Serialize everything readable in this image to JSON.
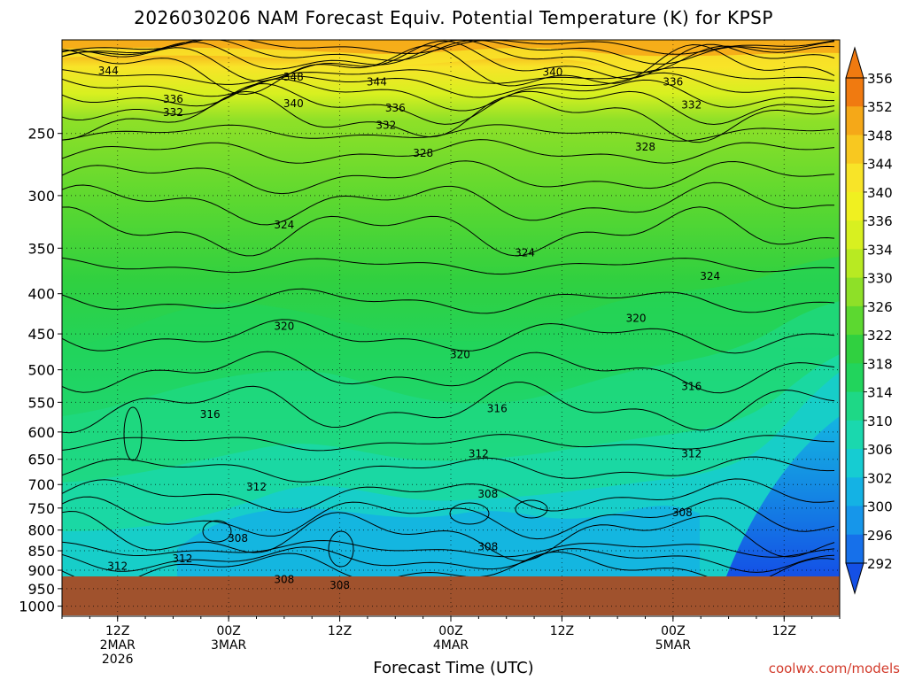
{
  "title": "2026030206 NAM Forecast Equiv. Potential Temperature (K) for KPSP",
  "credit": "coolwx.com/models",
  "chart_data": {
    "type": "heatmap",
    "title": "2026030206 NAM Forecast Equiv. Potential Temperature (K) for KPSP",
    "xlabel": "Forecast Time (UTC)",
    "ylabel": "",
    "x_ticks": [
      {
        "label": [
          "12Z",
          "2MAR",
          "2026"
        ],
        "hour": 6
      },
      {
        "label": [
          "00Z",
          "3MAR"
        ],
        "hour": 18
      },
      {
        "label": [
          "12Z"
        ],
        "hour": 30
      },
      {
        "label": [
          "00Z",
          "4MAR"
        ],
        "hour": 42
      },
      {
        "label": [
          "12Z"
        ],
        "hour": 54
      },
      {
        "label": [
          "00Z",
          "5MAR"
        ],
        "hour": 66
      },
      {
        "label": [
          "12Z"
        ],
        "hour": 78
      }
    ],
    "xlim_hours": [
      0,
      84
    ],
    "y_ticks": [
      "250",
      "300",
      "350",
      "400",
      "450",
      "500",
      "550",
      "600",
      "650",
      "700",
      "750",
      "800",
      "850",
      "900",
      "950",
      "1000"
    ],
    "y_tick_values": [
      250,
      300,
      350,
      400,
      450,
      500,
      550,
      600,
      650,
      700,
      750,
      800,
      850,
      900,
      950,
      1000
    ],
    "ylim": [
      190,
      1030
    ],
    "y_scale": "log-pressure",
    "ground_pressure": 940,
    "grid": true,
    "colorbar": {
      "labels": [
        "356",
        "352",
        "348",
        "344",
        "340",
        "336",
        "334",
        "330",
        "326",
        "322",
        "318",
        "314",
        "310",
        "306",
        "302",
        "300",
        "296",
        "292"
      ],
      "values": [
        356,
        352,
        348,
        344,
        340,
        336,
        334,
        330,
        326,
        322,
        318,
        314,
        310,
        306,
        302,
        300,
        296,
        292
      ],
      "colors": [
        "#f07a10",
        "#f5a818",
        "#f8c820",
        "#f8e428",
        "#f0f020",
        "#d8f020",
        "#b8ea22",
        "#8ee028",
        "#5cd830",
        "#30d040",
        "#22d45c",
        "#1ed886",
        "#1ad8ae",
        "#16ccd2",
        "#14b2e4",
        "#1696ea",
        "#1670ea",
        "#1450e6"
      ]
    },
    "contour_labels": [
      {
        "text": "344",
        "hour": 5,
        "p": 208
      },
      {
        "text": "348",
        "hour": 25,
        "p": 212
      },
      {
        "text": "344",
        "hour": 34,
        "p": 215
      },
      {
        "text": "340",
        "hour": 53,
        "p": 209
      },
      {
        "text": "336",
        "hour": 66,
        "p": 215
      },
      {
        "text": "336",
        "hour": 12,
        "p": 226
      },
      {
        "text": "340",
        "hour": 25,
        "p": 229
      },
      {
        "text": "336",
        "hour": 36,
        "p": 232
      },
      {
        "text": "332",
        "hour": 68,
        "p": 230
      },
      {
        "text": "332",
        "hour": 12,
        "p": 235
      },
      {
        "text": "332",
        "hour": 35,
        "p": 244
      },
      {
        "text": "328",
        "hour": 39,
        "p": 265
      },
      {
        "text": "328",
        "hour": 63,
        "p": 260
      },
      {
        "text": "324",
        "hour": 24,
        "p": 327
      },
      {
        "text": "324",
        "hour": 50,
        "p": 355
      },
      {
        "text": "324",
        "hour": 70,
        "p": 380
      },
      {
        "text": "320",
        "hour": 24,
        "p": 440
      },
      {
        "text": "320",
        "hour": 43,
        "p": 478
      },
      {
        "text": "320",
        "hour": 62,
        "p": 430
      },
      {
        "text": "316",
        "hour": 16,
        "p": 570
      },
      {
        "text": "316",
        "hour": 47,
        "p": 560
      },
      {
        "text": "316",
        "hour": 68,
        "p": 525
      },
      {
        "text": "312",
        "hour": 45,
        "p": 640
      },
      {
        "text": "312",
        "hour": 68,
        "p": 640
      },
      {
        "text": "312",
        "hour": 21,
        "p": 705
      },
      {
        "text": "308",
        "hour": 46,
        "p": 720
      },
      {
        "text": "308",
        "hour": 67,
        "p": 760
      },
      {
        "text": "308",
        "hour": 19,
        "p": 820
      },
      {
        "text": "308",
        "hour": 46,
        "p": 840
      },
      {
        "text": "312",
        "hour": 6,
        "p": 890
      },
      {
        "text": "312",
        "hour": 13,
        "p": 870
      },
      {
        "text": "308",
        "hour": 24,
        "p": 925
      },
      {
        "text": "308",
        "hour": 30,
        "p": 940
      }
    ]
  }
}
